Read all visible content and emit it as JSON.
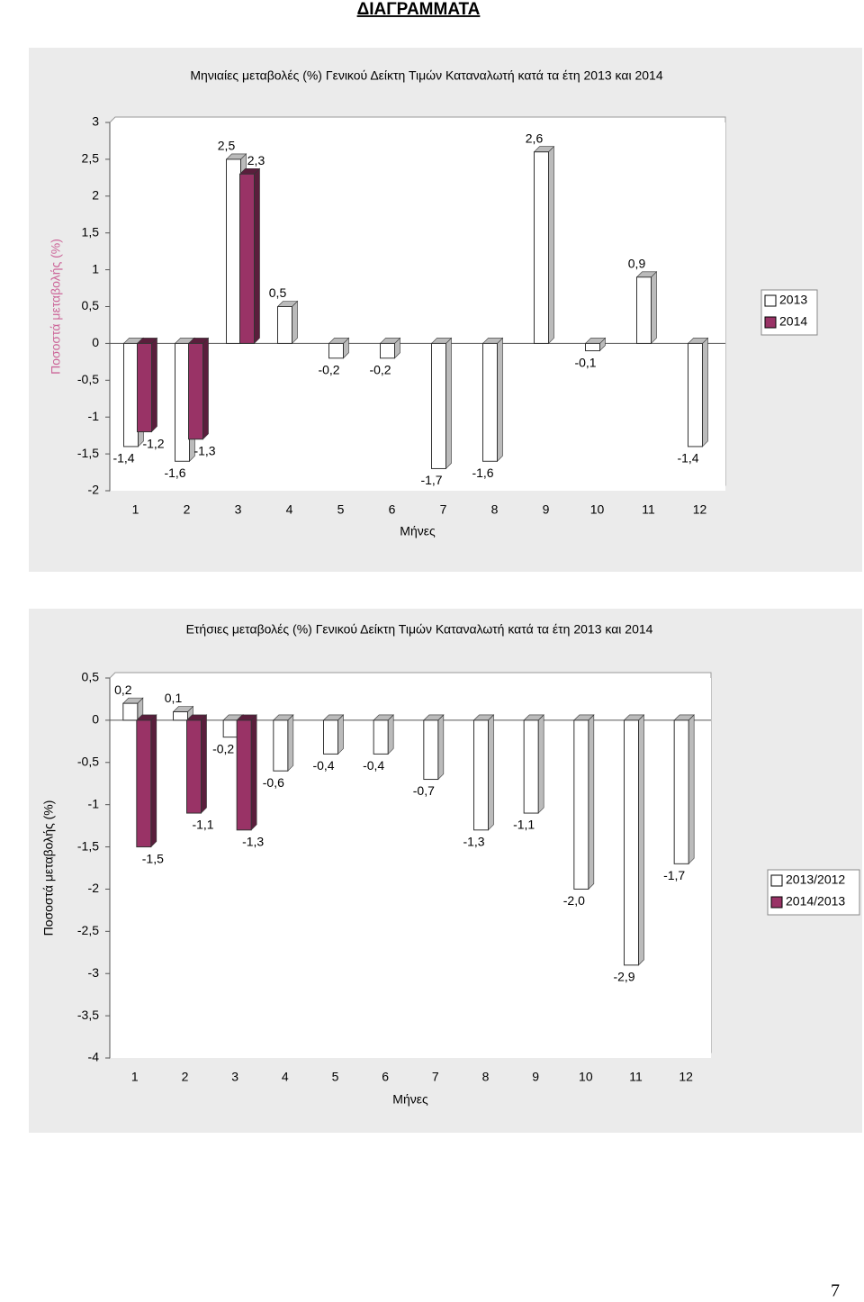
{
  "title": "ΔΙΑΓΡΑΜΜΑΤΑ",
  "page_number": "7",
  "chart_data": [
    {
      "type": "bar",
      "title": "Μηνιαίες μεταβολές (%) Γενικού Δείκτη Τιμών Καταναλωτή κατά τα έτη 2013 και 2014",
      "xlabel": "Μήνες",
      "ylabel": "Ποσοστά μεταβολής (%)",
      "categories": [
        "1",
        "2",
        "3",
        "4",
        "5",
        "6",
        "7",
        "8",
        "9",
        "10",
        "11",
        "12"
      ],
      "series": [
        {
          "name": "2013",
          "color": "#ffffff",
          "values": [
            -1.4,
            -1.6,
            2.5,
            0.5,
            -0.2,
            -0.2,
            -1.7,
            -1.6,
            2.6,
            -0.1,
            0.9,
            -1.4
          ],
          "value_labels": [
            "-1,4",
            "-1,6",
            "2,5",
            "0,5",
            "-0,2",
            "-0,2",
            "-1,7",
            "-1,6",
            "2,6",
            "-0,1",
            "0,9",
            "-1,4"
          ]
        },
        {
          "name": "2014",
          "color": "#993366",
          "values": [
            -1.2,
            -1.3,
            2.3,
            null,
            null,
            null,
            null,
            null,
            null,
            null,
            null,
            null
          ],
          "value_labels": [
            "-1,2",
            "-1,3",
            "2,3",
            null,
            null,
            null,
            null,
            null,
            null,
            null,
            null,
            null
          ]
        }
      ],
      "ylim": [
        -2,
        3
      ],
      "yticks": [
        -2,
        {
          "value": -1.5,
          "label": "-1,5"
        },
        -1,
        {
          "value": -0.5,
          "label": "-0,5"
        },
        0,
        {
          "value": 0.5,
          "label": "0,5"
        },
        1,
        {
          "value": 1.5,
          "label": "1,5"
        },
        2,
        {
          "value": 2.5,
          "label": "2,5"
        },
        3
      ],
      "legend": "right",
      "grid": false
    },
    {
      "type": "bar",
      "title": "Ετήσιες μεταβολές (%) Γενικού Δείκτη Τιμών Καταναλωτή κατά τα έτη 2013 και 2014",
      "xlabel": "Μήνες",
      "ylabel": "Ποσοστά μεταβολής (%)",
      "categories": [
        "1",
        "2",
        "3",
        "4",
        "5",
        "6",
        "7",
        "8",
        "9",
        "10",
        "11",
        "12"
      ],
      "series": [
        {
          "name": "2013/2012",
          "color": "#ffffff",
          "values": [
            0.2,
            0.1,
            -0.2,
            -0.6,
            -0.4,
            -0.4,
            -0.7,
            -1.3,
            -1.1,
            -2.0,
            -2.9,
            -1.7
          ],
          "value_labels": [
            "0,2",
            "0,1",
            "-0,2",
            "-0,6",
            "-0,4",
            "-0,4",
            "-0,7",
            "-1,3",
            "-1,1",
            "-2,0",
            "-2,9",
            "-1,7"
          ]
        },
        {
          "name": "2014/2013",
          "color": "#993366",
          "values": [
            -1.5,
            -1.1,
            -1.3,
            null,
            null,
            null,
            null,
            null,
            null,
            null,
            null,
            null
          ],
          "value_labels": [
            "-1,5",
            "-1,1",
            "-1,3",
            null,
            null,
            null,
            null,
            null,
            null,
            null,
            null,
            null
          ]
        }
      ],
      "ylim": [
        -4,
        0.5
      ],
      "yticks": [
        -4,
        {
          "value": -3.5,
          "label": "-3,5"
        },
        -3,
        {
          "value": -2.5,
          "label": "-2,5"
        },
        -2,
        {
          "value": -1.5,
          "label": "-1,5"
        },
        -1,
        {
          "value": -0.5,
          "label": "-0,5"
        },
        0,
        {
          "value": 0.5,
          "label": "0,5"
        }
      ],
      "legend": "right",
      "grid": false
    }
  ]
}
